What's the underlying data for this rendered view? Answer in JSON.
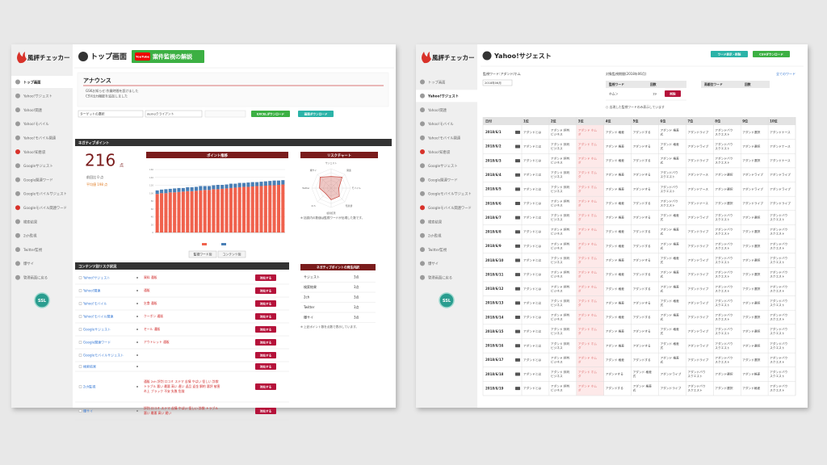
{
  "sidebar": {
    "app_name": "風評チェッカー",
    "items": [
      "トップ画面",
      "Yahoo!サジェスト",
      "Yahoo!関連",
      "Yahoo!モバイル",
      "Yahoo!モバイル関連",
      "Yahoo!知恵袋",
      "Googleサジェスト",
      "Google関連ワード",
      "Googleモバイルサジェスト",
      "Googleモバイル関連ワード",
      "検索結果",
      "2ch監視",
      "Twitter監視",
      "爆サイ",
      "管理画面に戻る"
    ],
    "badge": "SSL"
  },
  "top": {
    "title": "トップ画面",
    "video_badge": "YouTube",
    "video_button": "案件監視の解説",
    "announce": {
      "title": "アナウンス",
      "lines": [
        "GSKお知らせ:作業時間を設けました",
        "CSV出力機能を追加しました"
      ]
    },
    "selects": [
      "ターゲットの選択",
      "demoクライアント"
    ],
    "buttons": [
      "EXCELダウンロード",
      "画面ダウンロード"
    ],
    "points_bar": "ネガティブポイント",
    "points": {
      "value": "216",
      "unit": "点",
      "lines": [
        "前回比 0 点",
        "平均値 198 点"
      ]
    },
    "chart": {
      "type": "bar",
      "title": "ポイント推移",
      "ylim": [
        0,
        160
      ],
      "yticks": [
        0,
        20,
        40,
        60,
        80,
        100,
        120,
        140,
        160
      ],
      "series": [
        {
          "color": "#f0624d",
          "values": [
            98,
            100,
            100,
            102,
            102,
            103,
            104,
            105,
            105,
            106,
            107,
            108,
            108,
            110,
            110,
            111,
            112,
            113,
            114,
            115,
            116,
            116,
            117,
            118,
            118,
            119,
            120,
            120,
            121,
            122
          ]
        },
        {
          "color": "#4a7fb5",
          "values": [
            9,
            9,
            10,
            9,
            10,
            10,
            9,
            10,
            10,
            10,
            11,
            10,
            10,
            10,
            11,
            10,
            10,
            11,
            10,
            11,
            10,
            11,
            11,
            10,
            11,
            11,
            11,
            12,
            11,
            11
          ]
        }
      ],
      "view_buttons": [
        "監視ワード別",
        "コンテンツ別"
      ]
    },
    "radar": {
      "type": "radar",
      "title": "リスクチャート",
      "rlim": [
        0,
        5
      ],
      "labels": [
        "サジェスト",
        "関連",
        "モバイル",
        "知恵袋",
        "検索結果",
        "2ch",
        "Twitter",
        "爆サイ"
      ],
      "values": [
        3,
        4,
        2,
        3,
        3,
        2,
        3,
        4
      ],
      "color": "#c8443a",
      "note": "※ 括弧内の数値は監視ワードが出現した数です。"
    },
    "risk": {
      "title": "コンテンツ別リスク状況",
      "action": "対処する",
      "rows": [
        {
          "name": "Yahoo!サジェスト",
          "keywords": [
            "資料 通販"
          ]
        },
        {
          "name": "Yahoo!関連",
          "keywords": [
            "通販"
          ]
        },
        {
          "name": "Yahoo!モバイル",
          "keywords": [
            "乞食 通販"
          ]
        },
        {
          "name": "Yahoo!モバイル関連",
          "keywords": [
            "クーポン 通販"
          ]
        },
        {
          "name": "Googleサジェスト",
          "keywords": [
            "セール 通販"
          ]
        },
        {
          "name": "Google関連ワード",
          "keywords": [
            "アウトレット 通販"
          ]
        },
        {
          "name": "Googleモバイルサジェスト",
          "keywords": []
        },
        {
          "name": "検索結果",
          "keywords": []
        },
        {
          "name": "2ch監視",
          "keywords": [
            "通販 2ch 評判 口コミ ステマ 苦情 やばい 怪しい 詐欺",
            "トラブル 悪い 最悪 高い 遅い 返品 返金 解約 悪評 被害",
            "炎上 ブラック 不安 失敗 危険"
          ]
        },
        {
          "name": "爆サイ",
          "keywords": [
            "評判 口コミ ステマ 苦情 やばい 怪しい 詐欺 トラブル",
            "悪い 最悪 高い 遅い"
          ]
        }
      ]
    },
    "breakdown": {
      "title": "ネガティブポイントの発生内訳",
      "rows": [
        [
          "サジェスト",
          "3点"
        ],
        [
          "検索結果",
          "3点"
        ],
        [
          "2ch",
          "3点"
        ],
        [
          "Twitter",
          "3点"
        ],
        [
          "爆サイ",
          "3点"
        ]
      ],
      "note": "※ 上記ポイント数を点数で表示しています。"
    }
  },
  "suggest": {
    "title": "Yahoo!サジェスト",
    "buttons": [
      "ワード表示・削除",
      "CSVダウンロード"
    ],
    "filter_label": "監視ワード:アダンド/ホム",
    "month": "2018年06月",
    "period_title": "対象監視期間(2018年06月)",
    "period_header": [
      "監視ワード",
      "回数"
    ],
    "period_row": [
      "ホムン",
      "19"
    ],
    "period_action": "削除",
    "rank_header": [
      "高順位ワード",
      "回数"
    ],
    "all_link": "全てのワード",
    "note": "○ 出現した監視ワードのみ表示しています",
    "table": {
      "header": [
        "日付",
        "1位",
        "2位",
        "3位",
        "4位",
        "5位",
        "6位",
        "7位",
        "8位",
        "9位",
        "10位"
      ],
      "rows": [
        {
          "date": "2018/6/1",
          "cells": [
            [
              "アダンドとは"
            ],
            [
              "アダンド 評判",
              "ビジネス"
            ],
            [
              "アダンド ホム",
              "ダ"
            ],
            [
              "アダンド 格差"
            ],
            [
              "アダンドする"
            ],
            [
              "アダンド 格差",
              "式"
            ],
            [
              "アダンドライブ"
            ],
            [
              "アダンドバウ",
              "スクエスト"
            ],
            [
              "アダンド選択"
            ],
            [
              "アダンドナース"
            ]
          ]
        },
        {
          "date": "2018/6/2",
          "cells": [
            [
              "アダンドとは"
            ],
            [
              "アダンド 評判",
              "ビジネス"
            ],
            [
              "アダンド ホム",
              "ダ"
            ],
            [
              "アダンド 格差"
            ],
            [
              "アダンドする"
            ],
            [
              "アダンド 格差",
              "式"
            ],
            [
              "アダンドライブ"
            ],
            [
              "アダンドバウ",
              "スクエスト"
            ],
            [
              "アダンド選択"
            ],
            [
              "アダンドナース"
            ]
          ]
        },
        {
          "date": "2018/6/3",
          "cells": [
            [
              "アダンドとは"
            ],
            [
              "アダンド 評判",
              "ビジネス"
            ],
            [
              "アダンド ホム",
              "ダ"
            ],
            [
              "アダンド 格差"
            ],
            [
              "アダンドする"
            ],
            [
              "アダンド 格差",
              "式"
            ],
            [
              "アダンドライブ"
            ],
            [
              "アダンドバウ",
              "スクエスト"
            ],
            [
              "アダンド選択"
            ],
            [
              "アダンドナース"
            ]
          ]
        },
        {
          "date": "2018/6/4",
          "cells": [
            [
              "アダンドとは"
            ],
            [
              "アダンド 評判",
              "ビジネス"
            ],
            [
              "アダンド ホム",
              "ダ"
            ],
            [
              "アダンド 格差"
            ],
            [
              "アダンドする"
            ],
            [
              "アダンドバウ",
              "スクエスト"
            ],
            [
              "アダンドナース"
            ],
            [
              "アダンド選択"
            ],
            [
              "アダンドライブ"
            ],
            [
              "アダンドライブ"
            ]
          ]
        },
        {
          "date": "2018/6/5",
          "cells": [
            [
              "アダンドとは"
            ],
            [
              "アダンド 評判",
              "ビジネス"
            ],
            [
              "アダンド ホム",
              "ダ"
            ],
            [
              "アダンド 格差"
            ],
            [
              "アダンドする"
            ],
            [
              "アダンドバウ",
              "スクエスト"
            ],
            [
              "アダンドナース"
            ],
            [
              "アダンド選択"
            ],
            [
              "アダンドライブ"
            ],
            [
              "アダンドライブ"
            ]
          ]
        },
        {
          "date": "2018/6/6",
          "cells": [
            [
              "アダンドとは"
            ],
            [
              "アダンド 評判",
              "ビジネス"
            ],
            [
              "アダンド ホム",
              "ダ"
            ],
            [
              "アダンド 格差"
            ],
            [
              "アダンドする"
            ],
            [
              "アダンドバウ",
              "スクエスト"
            ],
            [
              "アダンドナース"
            ],
            [
              "アダンド選択"
            ],
            [
              "アダンドライブ"
            ],
            [
              "アダンドライブ"
            ]
          ]
        },
        {
          "date": "2018/6/7",
          "cells": [
            [
              "アダンドとは"
            ],
            [
              "アダンド 評判",
              "ビジネス"
            ],
            [
              "アダンド ホム",
              "ダ"
            ],
            [
              "アダンド 格差"
            ],
            [
              "アダンドする"
            ],
            [
              "アダンド 格差",
              "式"
            ],
            [
              "アダンドライブ"
            ],
            [
              "アダンドバウ",
              "スクエスト"
            ],
            [
              "アダンド選択"
            ],
            [
              "アダンドバウ",
              "スクエスト"
            ]
          ]
        },
        {
          "date": "2018/6/8",
          "cells": [
            [
              "アダンドとは"
            ],
            [
              "アダンド 評判",
              "ビジネス"
            ],
            [
              "アダンド ホム",
              "ダ"
            ],
            [
              "アダンド 格差"
            ],
            [
              "アダンドする"
            ],
            [
              "アダンド 格差",
              "式"
            ],
            [
              "アダンドライブ"
            ],
            [
              "アダンドバウ",
              "スクエスト"
            ],
            [
              "アダンド選択"
            ],
            [
              "アダンドバウ",
              "スクエスト"
            ]
          ]
        },
        {
          "date": "2018/6/9",
          "cells": [
            [
              "アダンドとは"
            ],
            [
              "アダンド 評判",
              "ビジネス"
            ],
            [
              "アダンド ホム",
              "ダ"
            ],
            [
              "アダンド 格差"
            ],
            [
              "アダンドする"
            ],
            [
              "アダンド 格差",
              "式"
            ],
            [
              "アダンドライブ"
            ],
            [
              "アダンドバウ",
              "スクエスト"
            ],
            [
              "アダンド選択"
            ],
            [
              "アダンドバウ",
              "スクエスト"
            ]
          ]
        },
        {
          "date": "2018/6/10",
          "cells": [
            [
              "アダンドとは"
            ],
            [
              "アダンド 評判",
              "ビジネス"
            ],
            [
              "アダンド ホム",
              "ダ"
            ],
            [
              "アダンド 格差"
            ],
            [
              "アダンドする"
            ],
            [
              "アダンド 格差",
              "式"
            ],
            [
              "アダンドライブ"
            ],
            [
              "アダンドバウ",
              "スクエスト"
            ],
            [
              "アダンド選択"
            ],
            [
              "アダンドバウ",
              "スクエスト"
            ]
          ]
        },
        {
          "date": "2018/6/11",
          "cells": [
            [
              "アダンドとは"
            ],
            [
              "アダンド 評判",
              "ビジネス"
            ],
            [
              "アダンド ホム",
              "ダ"
            ],
            [
              "アダンド 格差"
            ],
            [
              "アダンドする"
            ],
            [
              "アダンド 格差",
              "式"
            ],
            [
              "アダンドライブ"
            ],
            [
              "アダンドバウ",
              "スクエスト"
            ],
            [
              "アダンド選択"
            ],
            [
              "アダンドバウ",
              "スクエスト"
            ]
          ]
        },
        {
          "date": "2018/6/12",
          "cells": [
            [
              "アダンドとは"
            ],
            [
              "アダンド 評判",
              "ビジネス"
            ],
            [
              "アダンド ホム",
              "ダ"
            ],
            [
              "アダンド 格差"
            ],
            [
              "アダンドする"
            ],
            [
              "アダンド 格差",
              "式"
            ],
            [
              "アダンドライブ"
            ],
            [
              "アダンドバウ",
              "スクエスト"
            ],
            [
              "アダンド選択"
            ],
            [
              "アダンドバウ",
              "スクエスト"
            ]
          ]
        },
        {
          "date": "2018/6/13",
          "cells": [
            [
              "アダンドとは"
            ],
            [
              "アダンド 評判",
              "ビジネス"
            ],
            [
              "アダンド ホム",
              "ダ"
            ],
            [
              "アダンド 格差"
            ],
            [
              "アダンドする"
            ],
            [
              "アダンド 格差",
              "式"
            ],
            [
              "アダンドライブ"
            ],
            [
              "アダンドバウ",
              "スクエスト"
            ],
            [
              "アダンド選択"
            ],
            [
              "アダンドバウ",
              "スクエスト"
            ]
          ]
        },
        {
          "date": "2018/6/14",
          "cells": [
            [
              "アダンドとは"
            ],
            [
              "アダンド 評判",
              "ビジネス"
            ],
            [
              "アダンド ホム",
              "ダ"
            ],
            [
              "アダンド 格差"
            ],
            [
              "アダンドする"
            ],
            [
              "アダンド 格差",
              "式"
            ],
            [
              "アダンドライブ"
            ],
            [
              "アダンドバウ",
              "スクエスト"
            ],
            [
              "アダンド選択"
            ],
            [
              "アダンドバウ",
              "スクエスト"
            ]
          ]
        },
        {
          "date": "2018/6/15",
          "cells": [
            [
              "アダンドとは"
            ],
            [
              "アダンド 評判",
              "ビジネス"
            ],
            [
              "アダンド ホム",
              "ダ"
            ],
            [
              "アダンド 格差"
            ],
            [
              "アダンドする"
            ],
            [
              "アダンド 格差",
              "式"
            ],
            [
              "アダンドライブ"
            ],
            [
              "アダンドバウ",
              "スクエスト"
            ],
            [
              "アダンド選択"
            ],
            [
              "アダンドバウ",
              "スクエスト"
            ]
          ]
        },
        {
          "date": "2018/6/16",
          "cells": [
            [
              "アダンドとは"
            ],
            [
              "アダンド 評判",
              "ビジネス"
            ],
            [
              "アダンド ホム",
              "ダ"
            ],
            [
              "アダンド 格差"
            ],
            [
              "アダンドする"
            ],
            [
              "アダンド 格差",
              "式"
            ],
            [
              "アダンドライブ"
            ],
            [
              "アダンドバウ",
              "スクエスト"
            ],
            [
              "アダンド選択"
            ],
            [
              "アダンドバウ",
              "スクエスト"
            ]
          ]
        },
        {
          "date": "2018/6/17",
          "cells": [
            [
              "アダンドとは"
            ],
            [
              "アダンド 評判",
              "ビジネス"
            ],
            [
              "アダンド ホム",
              "ダ"
            ],
            [
              "アダンド 格差"
            ],
            [
              "アダンドする"
            ],
            [
              "アダンド 格差",
              "式"
            ],
            [
              "アダンドライブ"
            ],
            [
              "アダンドバウ",
              "スクエスト"
            ],
            [
              "アダンド選択"
            ],
            [
              "アダンドバウ",
              "スクエスト"
            ]
          ]
        },
        {
          "date": "2018/6/18",
          "cells": [
            [
              "アダンドとは"
            ],
            [
              "アダンド 評判",
              "ビジネス"
            ],
            [
              "アダンド ホム",
              "ダ"
            ],
            [
              "アダンドする"
            ],
            [
              "アダンド 格差",
              "式"
            ],
            [
              "アダンドライブ"
            ],
            [
              "アダンドバウ",
              "スクエスト"
            ],
            [
              "アダンド選択"
            ],
            [
              "アダンド格差"
            ],
            [
              "アダンドバウ",
              "スクエスト"
            ]
          ]
        },
        {
          "date": "2018/6/19",
          "cells": [
            [
              "アダンドとは"
            ],
            [
              "アダンド 評判",
              "ビジネス"
            ],
            [
              "アダンド ホム",
              "ダ"
            ],
            [
              "アダンドする"
            ],
            [
              "アダンド 格差",
              "式"
            ],
            [
              "アダンドライブ"
            ],
            [
              "アダンドバウ",
              "スクエスト"
            ],
            [
              "アダンド選択"
            ],
            [
              "アダンド格差"
            ],
            [
              "アダンドバウ",
              "スクエスト"
            ]
          ]
        }
      ]
    }
  }
}
